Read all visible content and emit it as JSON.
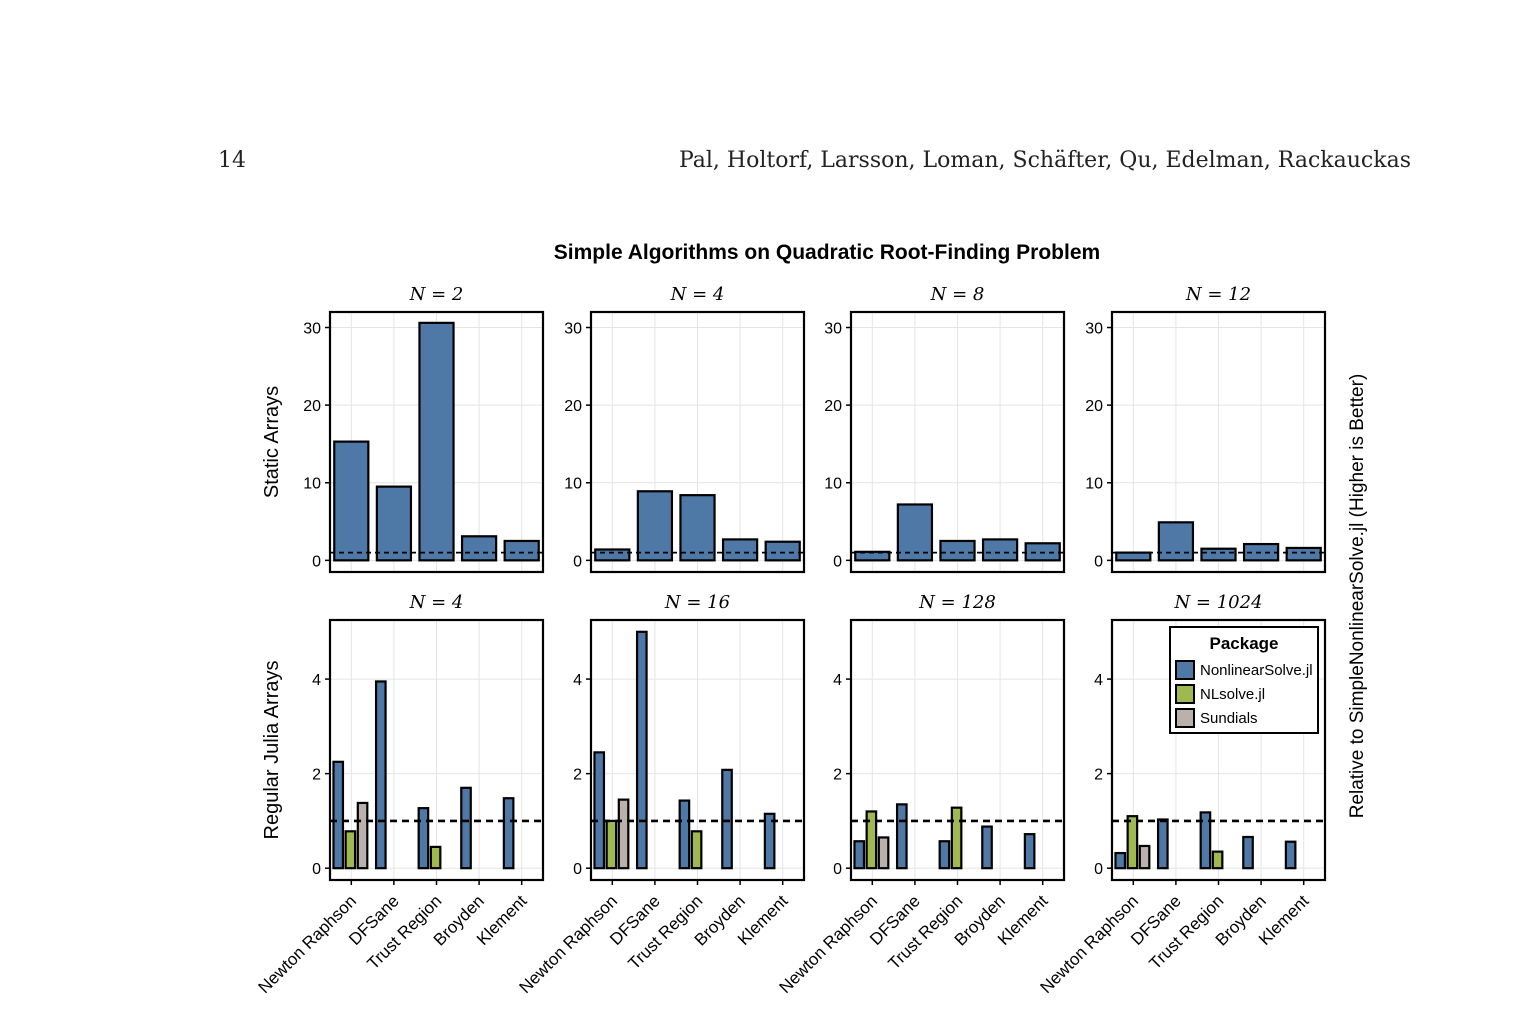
{
  "header": {
    "page_number": "14",
    "authors": "Pal, Holtorf, Larsson, Loman, Schäfter, Qu, Edelman, Rackauckas"
  },
  "chart_data": {
    "type": "bar",
    "title": "Simple Algorithms on Quadratic Root-Finding Problem",
    "ylabel": "Relative to SimpleNonlinearSolve.jl (Higher is Better)",
    "categories": [
      "Newton Raphson",
      "DFSane",
      "Trust Region",
      "Broyden",
      "Klement"
    ],
    "reference_line": 1,
    "colors": {
      "NonlinearSolve.jl": "#4e79a7",
      "NLsolve.jl": "#9fb84f",
      "Sundials": "#bab0ac"
    },
    "legend": {
      "title": "Package",
      "placement": "top-right",
      "entries": [
        "NonlinearSolve.jl",
        "NLsolve.jl",
        "Sundials"
      ]
    },
    "rows": [
      {
        "label": "Static Arrays",
        "ylim": [
          -1.5,
          32
        ],
        "yticks": [
          0,
          10,
          20,
          30
        ],
        "panels": [
          {
            "title": "N = 2",
            "series": [
              {
                "name": "NonlinearSolve.jl",
                "values": [
                  15.3,
                  9.5,
                  30.6,
                  3.1,
                  2.5
                ]
              }
            ]
          },
          {
            "title": "N = 4",
            "series": [
              {
                "name": "NonlinearSolve.jl",
                "values": [
                  1.4,
                  8.9,
                  8.4,
                  2.7,
                  2.4
                ]
              }
            ]
          },
          {
            "title": "N = 8",
            "series": [
              {
                "name": "NonlinearSolve.jl",
                "values": [
                  1.1,
                  7.2,
                  2.5,
                  2.7,
                  2.2
                ]
              }
            ]
          },
          {
            "title": "N = 12",
            "series": [
              {
                "name": "NonlinearSolve.jl",
                "values": [
                  1.0,
                  4.9,
                  1.5,
                  2.1,
                  1.6
                ]
              }
            ]
          }
        ]
      },
      {
        "label": "Regular Julia Arrays",
        "ylim": [
          -0.25,
          5.25
        ],
        "yticks": [
          0,
          2,
          4
        ],
        "panels": [
          {
            "title": "N = 4",
            "series": [
              {
                "name": "NonlinearSolve.jl",
                "values": [
                  2.25,
                  3.95,
                  1.27,
                  1.7,
                  1.48
                ]
              },
              {
                "name": "NLsolve.jl",
                "values": [
                  0.78,
                  null,
                  0.45,
                  null,
                  null
                ]
              },
              {
                "name": "Sundials",
                "values": [
                  1.38,
                  null,
                  null,
                  null,
                  null
                ]
              }
            ]
          },
          {
            "title": "N = 16",
            "series": [
              {
                "name": "NonlinearSolve.jl",
                "values": [
                  2.45,
                  5.0,
                  1.43,
                  2.08,
                  1.15
                ]
              },
              {
                "name": "NLsolve.jl",
                "values": [
                  1.0,
                  null,
                  0.78,
                  null,
                  null
                ]
              },
              {
                "name": "Sundials",
                "values": [
                  1.45,
                  null,
                  null,
                  null,
                  null
                ]
              }
            ]
          },
          {
            "title": "N = 128",
            "series": [
              {
                "name": "NonlinearSolve.jl",
                "values": [
                  0.57,
                  1.35,
                  0.57,
                  0.88,
                  0.72
                ]
              },
              {
                "name": "NLsolve.jl",
                "values": [
                  1.2,
                  null,
                  1.28,
                  null,
                  null
                ]
              },
              {
                "name": "Sundials",
                "values": [
                  0.65,
                  null,
                  null,
                  null,
                  null
                ]
              }
            ]
          },
          {
            "title": "N = 1024",
            "series": [
              {
                "name": "NonlinearSolve.jl",
                "values": [
                  0.32,
                  1.03,
                  1.18,
                  0.66,
                  0.56
                ]
              },
              {
                "name": "NLsolve.jl",
                "values": [
                  1.1,
                  null,
                  0.35,
                  null,
                  null
                ]
              },
              {
                "name": "Sundials",
                "values": [
                  0.47,
                  null,
                  null,
                  null,
                  null
                ]
              }
            ]
          }
        ]
      }
    ]
  }
}
